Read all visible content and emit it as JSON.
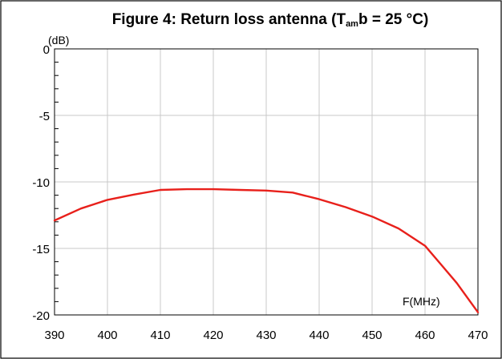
{
  "title": {
    "prefix": "Figure 4: Return loss antenna (T",
    "subscript": "am",
    "suffix": "b = 25 °C)"
  },
  "chart_data": {
    "type": "line",
    "title": "Figure 4: Return loss antenna (Tamb = 25 °C)",
    "xlabel": "F(MHz)",
    "ylabel": "(dB)",
    "xlim": [
      390,
      470
    ],
    "ylim": [
      -20,
      0
    ],
    "x_ticks": [
      "390",
      "400",
      "410",
      "420",
      "430",
      "440",
      "450",
      "460",
      "470"
    ],
    "y_ticks": [
      "0",
      "-5",
      "-10",
      "-15",
      "-20"
    ],
    "grid": true,
    "series": [
      {
        "color": "#e8201b",
        "x": [
          390,
          395,
          400,
          405,
          410,
          415,
          420,
          425,
          430,
          435,
          440,
          445,
          450,
          455,
          460,
          463,
          466,
          470
        ],
        "y": [
          -12.9,
          -12.0,
          -11.35,
          -10.95,
          -10.6,
          -10.55,
          -10.55,
          -10.6,
          -10.65,
          -10.8,
          -11.3,
          -11.9,
          -12.6,
          -13.5,
          -14.8,
          -16.2,
          -17.6,
          -19.8
        ]
      }
    ]
  }
}
